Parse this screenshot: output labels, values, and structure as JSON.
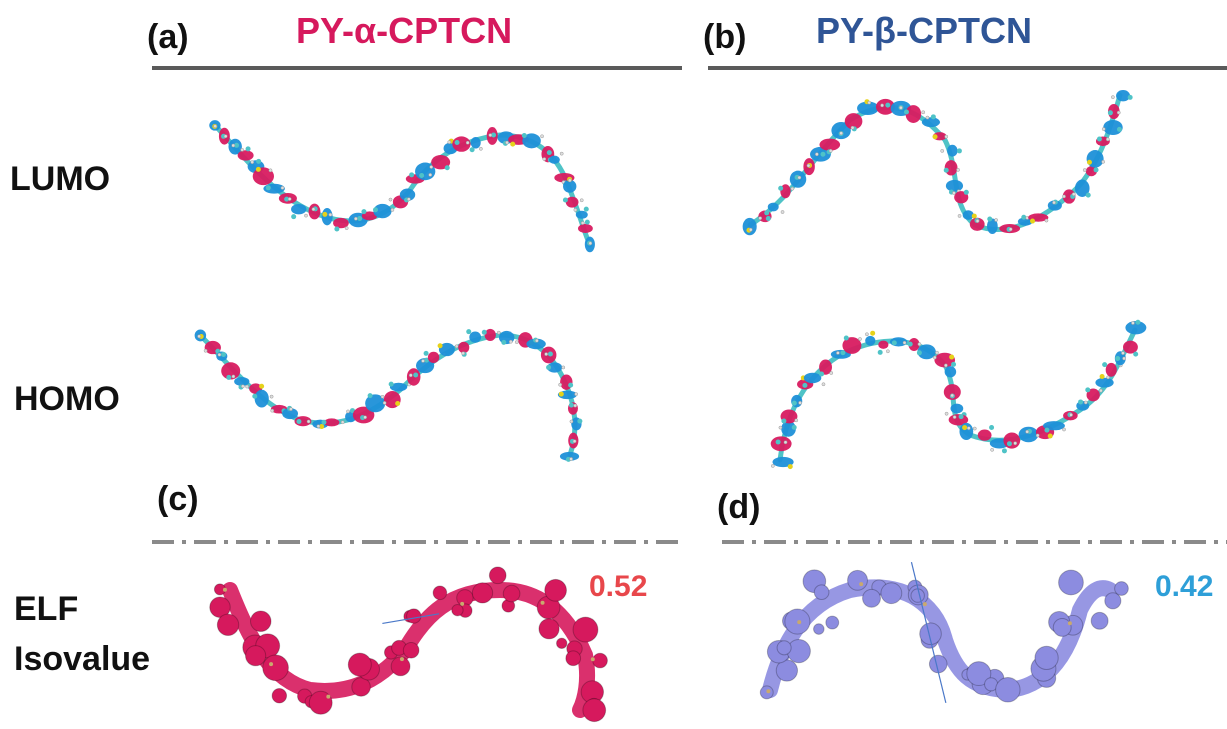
{
  "panels": {
    "a": {
      "label": "(a)",
      "title": "PY-α-CPTCN",
      "color": "#d6195d"
    },
    "b": {
      "label": "(b)",
      "title": "PY-β-CPTCN",
      "color": "#2f5596"
    },
    "c": {
      "label": "(c)"
    },
    "d": {
      "label": "(d)"
    }
  },
  "rows": {
    "lumo": "LUMO",
    "homo": "HOMO",
    "elf_line1": "ELF",
    "elf_line2": "Isovalue"
  },
  "isovalues": {
    "c": {
      "value": "0.52",
      "color": "#e8474b"
    },
    "d": {
      "value": "0.42",
      "color": "#2e9fd8"
    }
  },
  "colors": {
    "orbital_positive": "#1e90d8",
    "orbital_negative": "#d81b60",
    "atom_carbon": "#4fc3c7",
    "atom_sulfur": "#e6d21a",
    "elf_alpha": "#d6195d",
    "elf_beta": "#8c8ce0"
  }
}
